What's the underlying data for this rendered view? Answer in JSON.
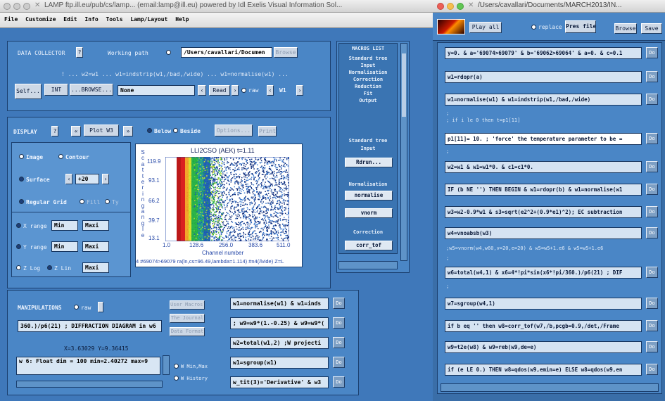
{
  "colors": {
    "window_bg": "#3f78ba",
    "panel_bg": "#4a86c6",
    "field_bg": "#d8e6f4",
    "plot_red": "#d81414",
    "plot_green": "#22b040",
    "plot_navy": "#0c2a7a"
  },
  "win1": {
    "title": "LAMP ftp.ill.eu/pub/cs/lamp... (email:lamp@ill.eu)    powered by Idl Exelis Visual Information Sol...",
    "menu": [
      "File",
      "Customize",
      "Edit",
      "Info",
      "Tools",
      "Lamp/Layout",
      "Help"
    ],
    "data_collector": {
      "label": "DATA COLLECTOR",
      "working_path_label": "Working path",
      "working_path_value": "/Users/cavallari/Documen",
      "browse": "Browse"
    },
    "formula_line": "! ... w2=w1 ... w1=indstrip(w1,/bad,/wide) ... w1=normalise(w1) ...",
    "self_btn": "Self...",
    "int_btn": "INT",
    "browse_btn": "...BROWSE...",
    "none_value": "None",
    "read_btn": "Read",
    "raw_label": "raw",
    "w_label": "W1",
    "display": {
      "label": "DISPLAY",
      "plot_btn": "Plot W3",
      "below": "Below",
      "beside": "Beside",
      "options_btn": "Options...",
      "print_btn": "Print",
      "image": "Image",
      "contour": "Contour",
      "surface": "Surface",
      "surface_value": "+20",
      "regular_grid": "Regular Grid",
      "fill": "Fill",
      "ty": "Ty",
      "x_range": "X range",
      "y_range": "Y range",
      "min": "Min",
      "maxi": "Maxi",
      "z_log": "Z Log",
      "z_lin": "Z Lin",
      "z_maxi": "Maxi"
    },
    "chart": {
      "title": "LLI2CSO (AEK) t=1.11",
      "ylabel": "Scattering angle",
      "xlabel": "Channel number",
      "y_ticks": [
        "119.9",
        "93.1",
        "66.2",
        "39.7",
        "13.1"
      ],
      "x_ticks": [
        "1.0",
        "128.6",
        "256.0",
        "383.6",
        "511.0"
      ],
      "footer": "4 #69074>69079 ra(ln,cs=96.49,lambda=1.114) #n4(/lvide) Z=L"
    },
    "macros": {
      "title": "MACROS LIST",
      "items": [
        "Standard tree",
        "Input",
        "Normalisation",
        "Correction",
        "Reduction",
        "Fit",
        "Output"
      ],
      "section_std": "Standard tree",
      "section_input": "Input",
      "btn_rdrun": "Rdrun...",
      "section_norm": "Normalisation",
      "btn_normalise": "normalise",
      "btn_vnorm": "vnorm",
      "section_corr": "Correction",
      "btn_corr": "corr_tof"
    },
    "manip": {
      "label": "MANIPULATIONS",
      "raw": "raw",
      "user_macros": "User Macros?",
      "journal": "The Journal",
      "data_format": "Data Format",
      "line": "360.)/p6(21) ; DIFFRACTION DIAGRAM in w6",
      "xy": "X=3.63029 Y=9.36415",
      "w6_info": "w 6: Float   dim = 100 min=2.40272 max=9",
      "min_max": "W Min,Max",
      "history": "W History",
      "commands": [
        "w1=normalise(w1) & w1=inds",
        "; w9=w9*(1.-0.25) & w9=w9*(",
        "w2=total(w1,2) ;W projecti",
        "w1=sgroup(w1)",
        "w_tit(3)='Derivative' & w3"
      ],
      "do": "Do"
    }
  },
  "win2": {
    "title": "/Users/cavallari/Documents/MARCH2013/IN...",
    "play_all": "Play all",
    "replace": "replace",
    "pres_files": "Pres files",
    "browse": "Browse",
    "save": "Save",
    "commands": [
      "y=0. & a='69074>69079' & b='69062>69064' & a=0. & c=0.1",
      "w1=rdopr(a)",
      "w1=normalise(w1) & w1=indstrip(w1,/bad,/wide)",
      "p1[11]= 10. ; 'force' the temperature parameter to be =",
      "w2=w1 & w1=w1*0. & c1=c1*0.",
      "IF (b NE '') THEN BEGIN & w1=rdopr(b) & w1=normalise(w1",
      "w3=w2-0.9*w1 & s3=sqrt(e2^2+(0.9*e1)^2); EC subtraction",
      "w4=vnoabsb(w3)",
      "w6=total(w4,1) & x6=4*!pi*sin(x6*!pi/360.)/p6(21) ; DIF",
      "w7=sgroup(w4,1)",
      "if b eq '' then w8=corr_tof(w7,/b,pcgb=0.9,/det,/Frame",
      "w9=t2e(w8) & w9=reb(w9,de=e)",
      "if (e LE 0.) THEN w8=qdos(w9,emin=e) ELSE w8=qdos(w9,en"
    ],
    "comments": [
      "; if i le 0 then t=p1[11]",
      ";w5=vnorm(w4,w60,v=20,e=20) & w5=w5+1.e6 & w5=w5+1.e6"
    ],
    "do": "Do"
  }
}
